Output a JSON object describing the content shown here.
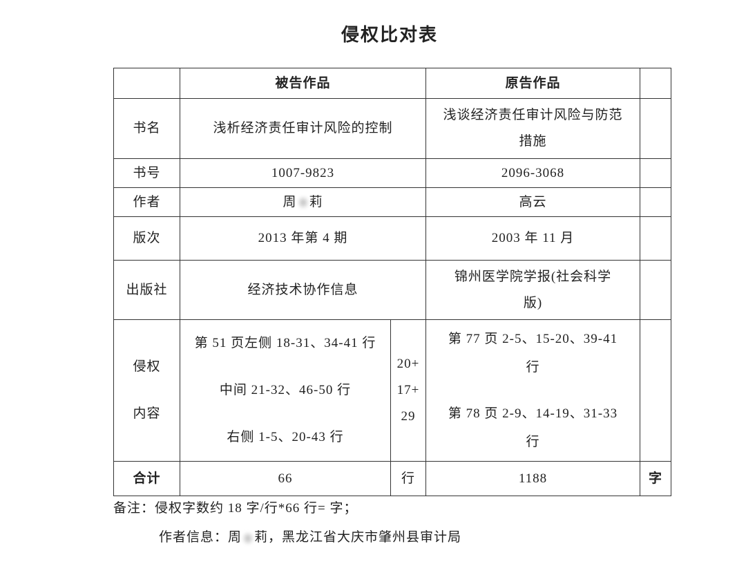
{
  "title": "侵权比对表",
  "header": {
    "defendant": "被告作品",
    "plaintiff": "原告作品"
  },
  "rows": {
    "book_name": {
      "label": "书名",
      "defendant": "浅析经济责任审计风险的控制",
      "plaintiff_line1": "浅谈经济责任审计风险与防范",
      "plaintiff_line2": "措施"
    },
    "book_no": {
      "label": "书号",
      "defendant": "1007-9823",
      "plaintiff": "2096-3068"
    },
    "author": {
      "label": "作者",
      "defendant_first": "周",
      "defendant_last": "莉",
      "plaintiff": "高云"
    },
    "edition": {
      "label": "版次",
      "defendant": "2013 年第 4 期",
      "plaintiff": "2003 年 11 月"
    },
    "publisher": {
      "label": "出版社",
      "defendant": "经济技术协作信息",
      "plaintiff_line1": "锦州医学院学报(社会科学",
      "plaintiff_line2": "版)"
    },
    "content": {
      "label_line1": "侵权",
      "label_line2": "内容",
      "defendant": [
        "第 51 页左侧 18-31、34-41 行",
        "中间 21-32、46-50 行",
        "右侧 1-5、20-43 行"
      ],
      "counts": [
        "20+",
        "17+",
        "29"
      ],
      "plaintiff": [
        "第 77 页 2-5、15-20、39-41",
        "行",
        "第 78 页 2-9、14-19、31-33",
        "行"
      ]
    },
    "total": {
      "label": "合计",
      "lines": "66",
      "lines_unit": "行",
      "chars": "1188",
      "chars_unit": "字"
    }
  },
  "notes": {
    "remark": "备注：侵权字数约 18 字/行*66 行= 字；",
    "author_prefix": "作者信息：周",
    "author_suffix": "莉，黑龙江省大庆市肇州县审计局"
  }
}
